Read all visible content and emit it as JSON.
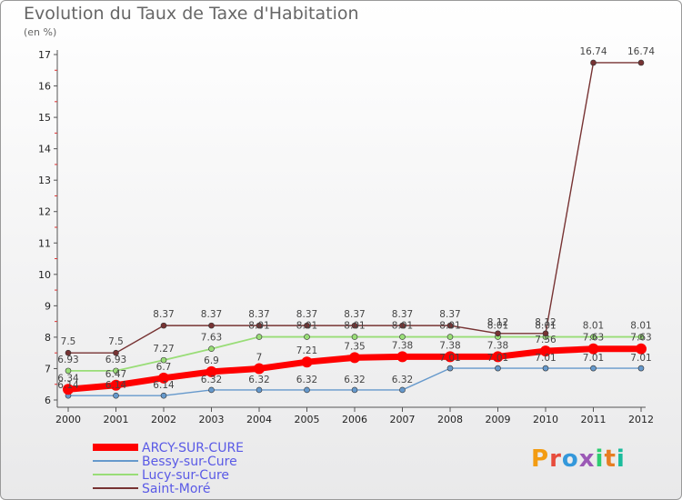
{
  "title": "Evolution du Taux de Taxe d'Habitation",
  "unit_label": "(en %)",
  "logo": {
    "text": "Proxiti",
    "colors": [
      "#f39c12",
      "#e74c3c",
      "#3498db",
      "#9b59b6",
      "#2ecc71",
      "#e67e22",
      "#1abc9c"
    ]
  },
  "chart_data": {
    "type": "line",
    "title": "Evolution du Taux de Taxe d'Habitation",
    "ylabel": "(en %)",
    "x": [
      "2000",
      "2001",
      "2002",
      "2003",
      "2004",
      "2005",
      "2006",
      "2007",
      "2008",
      "2009",
      "2010",
      "2011",
      "2012"
    ],
    "ylim": [
      6,
      17
    ],
    "yticks": [
      "6",
      "7",
      "8",
      "9",
      "10",
      "11",
      "12",
      "13",
      "14",
      "15",
      "16",
      "17"
    ],
    "grid": false,
    "legend": "bottom-left",
    "series": [
      {
        "name": "ARCY-SUR-CURE",
        "color": "#ff0000",
        "values": [
          6.34,
          6.47,
          6.7,
          6.9,
          7,
          7.21,
          7.35,
          7.38,
          7.38,
          7.38,
          7.56,
          7.63,
          7.63
        ],
        "labels": [
          "6.34",
          "6.47",
          "6.7",
          "6.9",
          "7",
          "7.21",
          "7.35",
          "7.38",
          "7.38",
          "7.38",
          "7.56",
          "7.63",
          "7.63"
        ]
      },
      {
        "name": "Bessy-sur-Cure",
        "color": "#6699cc",
        "values": [
          6.14,
          6.14,
          6.14,
          6.32,
          6.32,
          6.32,
          6.32,
          6.32,
          7.01,
          7.01,
          7.01,
          7.01,
          7.01
        ],
        "labels": [
          "6.14",
          "6.14",
          "6.14",
          "6.32",
          "6.32",
          "6.32",
          "6.32",
          "6.32",
          "7.01",
          "7.01",
          "7.01",
          "7.01",
          "7.01"
        ]
      },
      {
        "name": "Lucy-sur-Cure",
        "color": "#99dd77",
        "values": [
          6.93,
          6.93,
          7.27,
          7.63,
          8.01,
          8.01,
          8.01,
          8.01,
          8.01,
          8.01,
          8.01,
          8.01,
          8.01
        ],
        "labels": [
          "6.93",
          "6.93",
          "7.27",
          "7.63",
          "8.01",
          "8.01",
          "8.01",
          "8.01",
          "8.01",
          "8.01",
          "8.01",
          "8.01",
          "8.01"
        ]
      },
      {
        "name": "Saint-Moré",
        "color": "#773333",
        "values": [
          7.5,
          7.5,
          8.37,
          8.37,
          8.37,
          8.37,
          8.37,
          8.37,
          8.37,
          8.12,
          8.12,
          16.74,
          16.74
        ],
        "labels": [
          "7.5",
          "7.5",
          "8.37",
          "8.37",
          "8.37",
          "8.37",
          "8.37",
          "8.37",
          "8.37",
          "8.12",
          "8.12",
          "16.74",
          "16.74"
        ]
      }
    ]
  }
}
